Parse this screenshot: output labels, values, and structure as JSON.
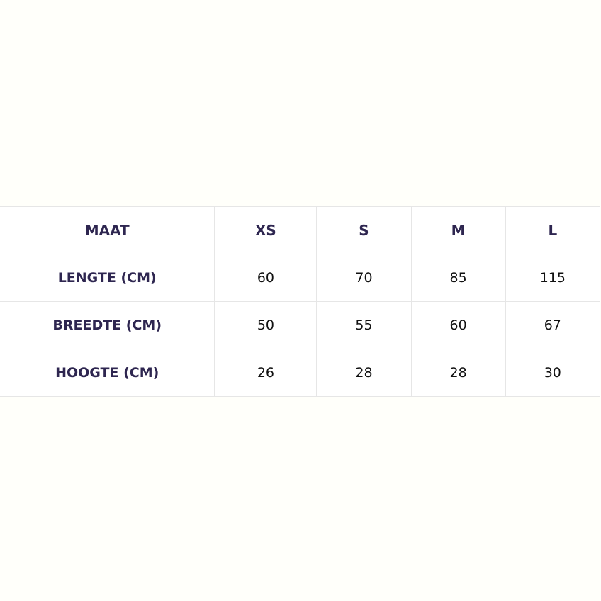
{
  "table": {
    "headers": [
      "MAAT",
      "XS",
      "S",
      "M",
      "L"
    ],
    "rows": [
      {
        "label": "LENGTE (CM)",
        "values": [
          "60",
          "70",
          "85",
          "115"
        ]
      },
      {
        "label": "BREEDTE (CM)",
        "values": [
          "50",
          "55",
          "60",
          "67"
        ]
      },
      {
        "label": "HOOGTE (CM)",
        "values": [
          "26",
          "28",
          "28",
          "30"
        ]
      }
    ]
  },
  "colors": {
    "header_text": "#2e2650",
    "border": "#e6e6e6",
    "background": "#fffffa"
  }
}
